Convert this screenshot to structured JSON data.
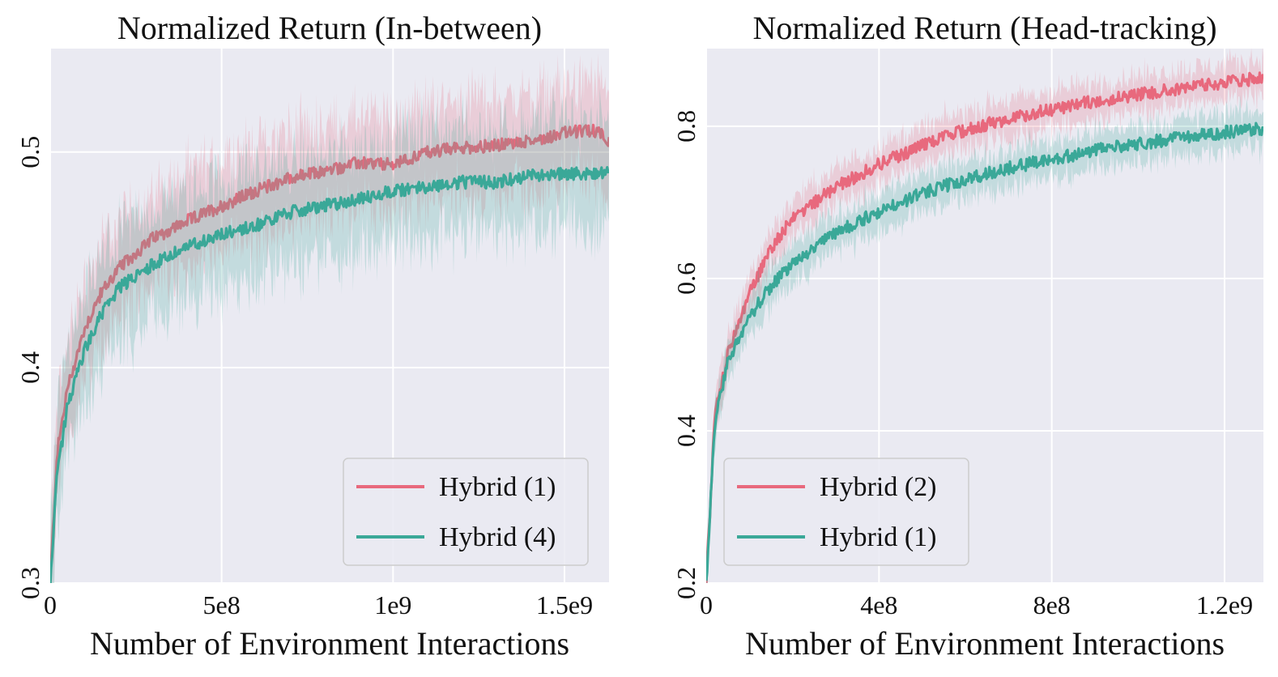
{
  "chart_data": [
    {
      "type": "line",
      "title": "Normalized Return (In-between)",
      "xlabel": "Number of Environment Interactions",
      "ylabel": "",
      "xlim": [
        0,
        1630000000
      ],
      "ylim": [
        0.3,
        0.548
      ],
      "x_ticks": [
        0,
        500000000,
        1000000000,
        1500000000
      ],
      "x_tick_labels": [
        "0",
        "5e8",
        "1e9",
        "1.5e9"
      ],
      "y_ticks": [
        0.3,
        0.4,
        0.5
      ],
      "y_tick_labels": [
        "0.3",
        "0.4",
        "0.5"
      ],
      "grid": true,
      "legend_position": "lower-right",
      "x": [
        0,
        20000000,
        50000000,
        100000000,
        150000000,
        200000000,
        300000000,
        400000000,
        500000000,
        600000000,
        700000000,
        800000000,
        900000000,
        1000000000,
        1100000000,
        1200000000,
        1300000000,
        1400000000,
        1500000000,
        1600000000,
        1630000000
      ],
      "series": [
        {
          "name": "Hybrid (1)",
          "color": "#e8697d",
          "values": [
            0.3,
            0.36,
            0.39,
            0.418,
            0.435,
            0.446,
            0.46,
            0.468,
            0.475,
            0.482,
            0.488,
            0.491,
            0.495,
            0.494,
            0.5,
            0.502,
            0.503,
            0.505,
            0.509,
            0.51,
            0.505
          ],
          "band": 0.018
        },
        {
          "name": "Hybrid (4)",
          "color": "#3aa898",
          "values": [
            0.3,
            0.35,
            0.382,
            0.408,
            0.425,
            0.437,
            0.448,
            0.456,
            0.462,
            0.466,
            0.472,
            0.475,
            0.478,
            0.482,
            0.484,
            0.486,
            0.486,
            0.489,
            0.49,
            0.49,
            0.492
          ],
          "band": 0.02
        }
      ]
    },
    {
      "type": "line",
      "title": "Normalized Return (Head-tracking)",
      "xlabel": "Number of Environment Interactions",
      "ylabel": "",
      "xlim": [
        0,
        1290000000
      ],
      "ylim": [
        0.2,
        0.902
      ],
      "x_ticks": [
        0,
        400000000,
        800000000,
        1200000000
      ],
      "x_tick_labels": [
        "0",
        "4e8",
        "8e8",
        "1.2e9"
      ],
      "y_ticks": [
        0.2,
        0.4,
        0.6,
        0.8
      ],
      "y_tick_labels": [
        "0.2",
        "0.4",
        "0.6",
        "0.8"
      ],
      "grid": true,
      "legend_position": "lower-left",
      "x": [
        0,
        20000000,
        50000000,
        100000000,
        150000000,
        200000000,
        300000000,
        400000000,
        500000000,
        600000000,
        700000000,
        800000000,
        900000000,
        1000000000,
        1100000000,
        1200000000,
        1290000000
      ],
      "series": [
        {
          "name": "Hybrid (2)",
          "color": "#e8697d",
          "values": [
            0.2,
            0.42,
            0.5,
            0.58,
            0.64,
            0.68,
            0.72,
            0.75,
            0.775,
            0.795,
            0.81,
            0.822,
            0.833,
            0.842,
            0.85,
            0.857,
            0.864
          ],
          "band": 0.02
        },
        {
          "name": "Hybrid (1)",
          "color": "#3aa898",
          "values": [
            0.2,
            0.41,
            0.49,
            0.55,
            0.59,
            0.62,
            0.66,
            0.688,
            0.712,
            0.73,
            0.745,
            0.757,
            0.768,
            0.777,
            0.785,
            0.792,
            0.797
          ],
          "band": 0.02
        }
      ]
    }
  ]
}
